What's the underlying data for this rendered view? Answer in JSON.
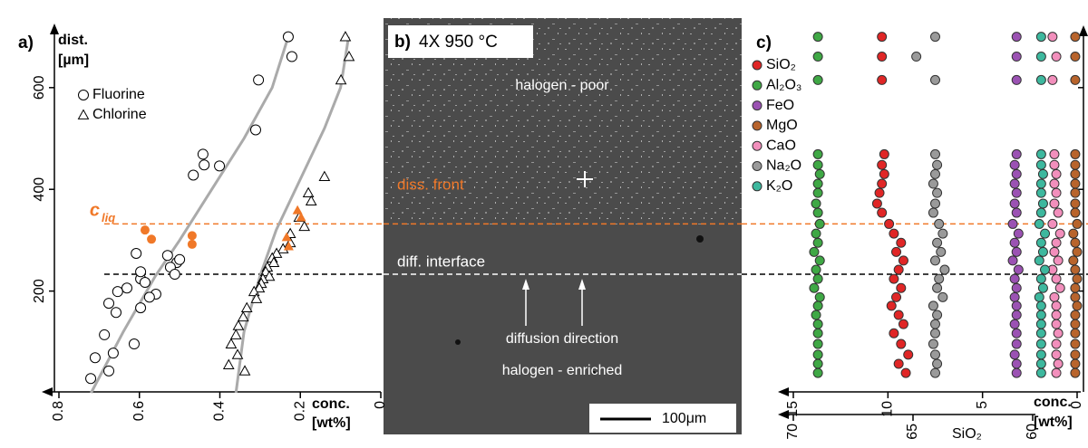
{
  "chart_data": [
    {
      "type": "scatter",
      "panel_label": "a)",
      "ylabel": [
        "dist.",
        "[µm]"
      ],
      "xlabel": [
        "conc.",
        "[wt%]"
      ],
      "xlim": [
        0.8,
        0
      ],
      "xticks": [
        0.8,
        0.6,
        0.4,
        0.2,
        0
      ],
      "ylim": [
        0,
        710
      ],
      "yticks": [
        200,
        400,
        600
      ],
      "legend": "top-left",
      "annotation": {
        "symbol": "c",
        "subscript": "liq",
        "color": "#f07828"
      },
      "reference_lines": [
        {
          "value": 332,
          "color": "#f07828"
        },
        {
          "value": 233,
          "color": "#000000"
        }
      ],
      "series": [
        {
          "name": "Fluorine",
          "marker": "circle-open",
          "color": "#000000",
          "x": [
            0.23,
            0.221,
            0.304,
            0.311,
            0.442,
            0.439,
            0.401,
            0.466,
            0.507,
            0.53,
            0.523,
            0.5,
            0.512,
            0.597,
            0.586,
            0.631,
            0.654,
            0.559,
            0.575,
            0.608,
            0.597,
            0.676,
            0.597,
            0.658,
            0.687,
            0.613,
            0.71,
            0.665,
            0.676,
            0.721
          ],
          "values": [
            700,
            661,
            615,
            517,
            469,
            448,
            446,
            428,
            256,
            270,
            247,
            262,
            233,
            224,
            217,
            206,
            199,
            194,
            188,
            274,
            238,
            176,
            167,
            158,
            114,
            96,
            69,
            78,
            43,
            28
          ]
        },
        {
          "name": "Chlorine",
          "marker": "triangle-open",
          "color": "#000000",
          "x": [
            0.088,
            0.079,
            0.099,
            0.14,
            0.18,
            0.173,
            0.203,
            0.19,
            0.225,
            0.225,
            0.243,
            0.259,
            0.27,
            0.266,
            0.282,
            0.286,
            0.277,
            0.293,
            0.297,
            0.302,
            0.315,
            0.309,
            0.333,
            0.342,
            0.354,
            0.36,
            0.372,
            0.356,
            0.378,
            0.338
          ],
          "values": [
            700,
            661,
            615,
            425,
            393,
            377,
            345,
            327,
            313,
            295,
            283,
            274,
            265,
            256,
            247,
            238,
            229,
            224,
            215,
            206,
            199,
            185,
            167,
            149,
            132,
            114,
            96,
            75,
            55,
            43
          ]
        },
        {
          "marker": "circle-filled",
          "color": "#f07828",
          "x": [
            0.586,
            0.57,
            0.469,
            0.469
          ],
          "values": [
            320,
            302,
            309,
            292
          ]
        },
        {
          "marker": "triangle-filled",
          "color": "#f07828",
          "x": [
            0.234,
            0.229,
            0.207,
            0.198
          ],
          "values": [
            306,
            288,
            359,
            345
          ]
        }
      ],
      "fits": [
        {
          "color": "#aaaaaa",
          "x": [
            0.72,
            0.64,
            0.56,
            0.5,
            0.42,
            0.34,
            0.27,
            0.23
          ],
          "values": [
            0,
            120,
            230,
            300,
            400,
            500,
            600,
            700
          ]
        },
        {
          "color": "#aaaaaa",
          "x": [
            0.36,
            0.34,
            0.3,
            0.26,
            0.2,
            0.14,
            0.1,
            0.08
          ],
          "values": [
            0,
            120,
            230,
            320,
            420,
            520,
            600,
            700
          ]
        }
      ]
    },
    {
      "type": "scatter",
      "panel_label": "c)",
      "xlabel": [
        "conc.",
        "[wt%]"
      ],
      "xlim": [
        15,
        0
      ],
      "xticks": [
        15,
        10,
        5,
        0
      ],
      "x2lim": [
        70,
        60
      ],
      "x2ticks": [
        70,
        65,
        60
      ],
      "x2label": "SiO₂",
      "ylim": [
        0,
        710
      ],
      "yticks": [
        200,
        400,
        600
      ],
      "show_ytick_labels": false,
      "legend": "top-left",
      "edgecolor": "#333333",
      "series": [
        {
          "name": "SiO₂",
          "axis": "x2",
          "marker": "circle-filled",
          "color": "#e02626",
          "x": [
            66.3,
            66.3,
            66.3,
            66.2,
            66.3,
            66.2,
            66.3,
            66.4,
            66.5,
            66.3,
            66.0,
            65.8,
            65.5,
            65.7,
            65.4,
            65.6,
            65.8,
            65.5,
            65.7,
            65.9,
            65.6,
            65.4,
            65.8,
            65.5,
            65.2,
            65.6,
            65.3
          ],
          "values": [
            700,
            661,
            615,
            469,
            448,
            430,
            411,
            393,
            372,
            354,
            332,
            313,
            295,
            277,
            260,
            242,
            224,
            206,
            188,
            171,
            153,
            135,
            117,
            96,
            75,
            57,
            39
          ]
        },
        {
          "name": "Al₂O₃",
          "marker": "circle-filled",
          "color": "#3fa845",
          "x": [
            13.7,
            13.7,
            13.7,
            13.7,
            13.7,
            13.6,
            13.7,
            13.7,
            13.8,
            13.7,
            13.6,
            13.8,
            13.7,
            13.9,
            13.6,
            13.8,
            13.7,
            13.9,
            13.6,
            13.7,
            13.8,
            13.7,
            13.7,
            13.7,
            13.7,
            13.7,
            13.7
          ],
          "values": [
            700,
            661,
            615,
            469,
            448,
            430,
            411,
            393,
            372,
            354,
            332,
            313,
            295,
            277,
            260,
            242,
            224,
            206,
            188,
            171,
            153,
            135,
            117,
            96,
            75,
            57,
            39
          ]
        },
        {
          "name": "FeO",
          "marker": "circle-filled",
          "color": "#9b52b3",
          "x": [
            3.2,
            3.2,
            3.2,
            3.2,
            3.3,
            3.2,
            3.3,
            3.2,
            3.3,
            3.2,
            3.4,
            3.1,
            3.3,
            3.2,
            3.4,
            3.1,
            3.3,
            3.2,
            3.3,
            3.2,
            3.2,
            3.3,
            3.2,
            3.2,
            3.3,
            3.2,
            3.2
          ],
          "values": [
            700,
            661,
            615,
            469,
            448,
            430,
            411,
            393,
            372,
            354,
            332,
            313,
            295,
            277,
            260,
            242,
            224,
            206,
            188,
            171,
            153,
            135,
            117,
            96,
            75,
            57,
            39
          ]
        },
        {
          "name": "MgO",
          "marker": "circle-filled",
          "color": "#b8642c",
          "x": [
            0.1,
            0.1,
            0.1,
            0.1,
            0.1,
            0.1,
            0.1,
            0.1,
            0.1,
            0.1,
            0.0,
            0.2,
            0.1,
            0.0,
            0.2,
            0.1,
            0.0,
            0.1,
            0.1,
            0.0,
            0.1,
            0.1,
            0.1,
            0.1,
            0.1,
            0.1,
            0.1
          ],
          "values": [
            700,
            661,
            615,
            469,
            448,
            430,
            411,
            393,
            372,
            354,
            332,
            313,
            295,
            277,
            260,
            242,
            224,
            206,
            188,
            171,
            153,
            135,
            117,
            96,
            75,
            57,
            39
          ]
        },
        {
          "name": "CaO",
          "marker": "circle-filled",
          "color": "#f28fbc",
          "x": [
            1.3,
            1.1,
            1.3,
            1.2,
            1.2,
            1.1,
            1.2,
            1.1,
            1.2,
            1.0,
            1.3,
            0.9,
            1.1,
            1.2,
            1.0,
            1.3,
            1.1,
            0.9,
            1.2,
            1.1,
            1.1,
            1.1,
            1.0,
            1.1,
            1.1,
            1.0,
            1.1
          ],
          "values": [
            700,
            661,
            615,
            469,
            448,
            430,
            411,
            393,
            372,
            354,
            332,
            313,
            295,
            277,
            260,
            242,
            224,
            206,
            188,
            171,
            153,
            135,
            117,
            96,
            75,
            57,
            39
          ]
        },
        {
          "name": "Na₂O",
          "marker": "circle-filled",
          "color": "#9a9a9a",
          "x": [
            7.5,
            8.5,
            7.5,
            7.5,
            7.4,
            7.5,
            7.6,
            7.4,
            7.5,
            7.6,
            7.3,
            7.1,
            7.4,
            7.2,
            7.5,
            7.0,
            7.3,
            7.4,
            7.1,
            7.6,
            7.4,
            7.5,
            7.5,
            7.6,
            7.5,
            7.4,
            7.5
          ],
          "values": [
            700,
            661,
            615,
            469,
            448,
            430,
            411,
            393,
            372,
            354,
            332,
            313,
            295,
            277,
            260,
            242,
            224,
            206,
            188,
            171,
            153,
            135,
            117,
            96,
            75,
            57,
            39
          ]
        },
        {
          "name": "K₂O",
          "marker": "circle-filled",
          "color": "#3db89e",
          "x": [
            1.9,
            1.9,
            1.9,
            1.9,
            1.9,
            1.8,
            1.9,
            1.9,
            1.8,
            1.9,
            2.0,
            1.7,
            1.9,
            1.8,
            2.0,
            1.7,
            1.9,
            1.8,
            2.0,
            1.9,
            1.9,
            1.9,
            1.9,
            1.9,
            1.9,
            1.9,
            1.9
          ],
          "values": [
            700,
            661,
            615,
            469,
            448,
            430,
            411,
            393,
            372,
            354,
            332,
            313,
            295,
            277,
            260,
            242,
            224,
            206,
            188,
            171,
            153,
            135,
            117,
            96,
            75,
            57,
            39
          ]
        }
      ]
    }
  ],
  "micrograph": {
    "label": "b)",
    "title": "4X 950 °C",
    "upper_text": "halogen - poor",
    "front_text": "diss. front",
    "interface_text": "diff. interface",
    "arrow_text": "diffusion direction",
    "lower_text": "halogen - enriched",
    "scale_bar": "100μm"
  }
}
